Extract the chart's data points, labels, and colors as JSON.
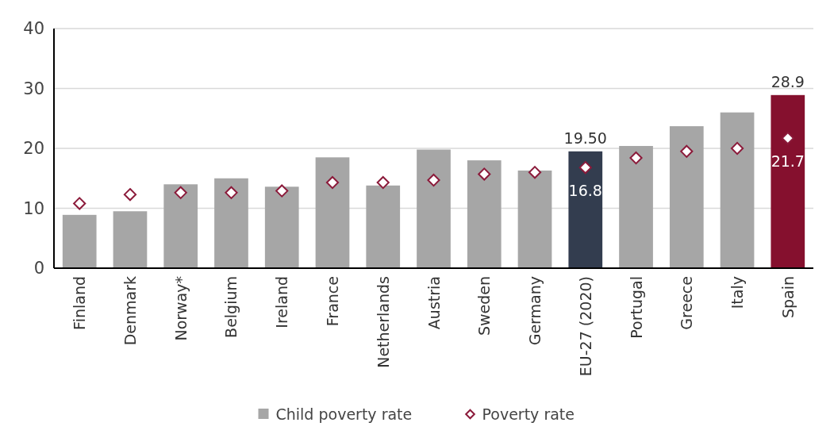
{
  "chart_data": {
    "type": "bar",
    "categories": [
      "Finland",
      "Denmark",
      "Norway*",
      "Belgium",
      "Ireland",
      "France",
      "Netherlands",
      "Austria",
      "Sweden",
      "Germany",
      "EU-27 (2020)",
      "Portugal",
      "Greece",
      "Italy",
      "Spain"
    ],
    "series": [
      {
        "name": "Child poverty rate",
        "color": "#a6a6a6",
        "colors": [
          "#a6a6a6",
          "#a6a6a6",
          "#a6a6a6",
          "#a6a6a6",
          "#a6a6a6",
          "#a6a6a6",
          "#a6a6a6",
          "#a6a6a6",
          "#a6a6a6",
          "#a6a6a6",
          "#333d4f",
          "#a6a6a6",
          "#a6a6a6",
          "#a6a6a6",
          "#85102e"
        ],
        "values": [
          8.9,
          9.5,
          14.0,
          15.0,
          13.6,
          18.5,
          13.8,
          19.8,
          18.0,
          16.3,
          19.5,
          20.4,
          23.7,
          26.0,
          28.9
        ],
        "value_labels": [
          null,
          null,
          null,
          null,
          null,
          null,
          null,
          null,
          null,
          null,
          "19.50",
          null,
          null,
          null,
          "28.9"
        ]
      },
      {
        "name": "Poverty rate",
        "type": "scatter",
        "marker": "diamond",
        "color": "#8b1a3a",
        "values": [
          10.8,
          12.3,
          12.6,
          12.6,
          12.9,
          14.3,
          14.3,
          14.7,
          15.7,
          16.0,
          16.8,
          18.4,
          19.5,
          20.0,
          21.7
        ],
        "value_labels": [
          null,
          null,
          null,
          null,
          null,
          null,
          null,
          null,
          null,
          null,
          "16.8",
          null,
          null,
          null,
          "21.7"
        ]
      }
    ],
    "ylim": [
      0,
      40
    ],
    "yticks": [
      0,
      10,
      20,
      30,
      40
    ],
    "grid": "y",
    "legend": "bottom"
  }
}
